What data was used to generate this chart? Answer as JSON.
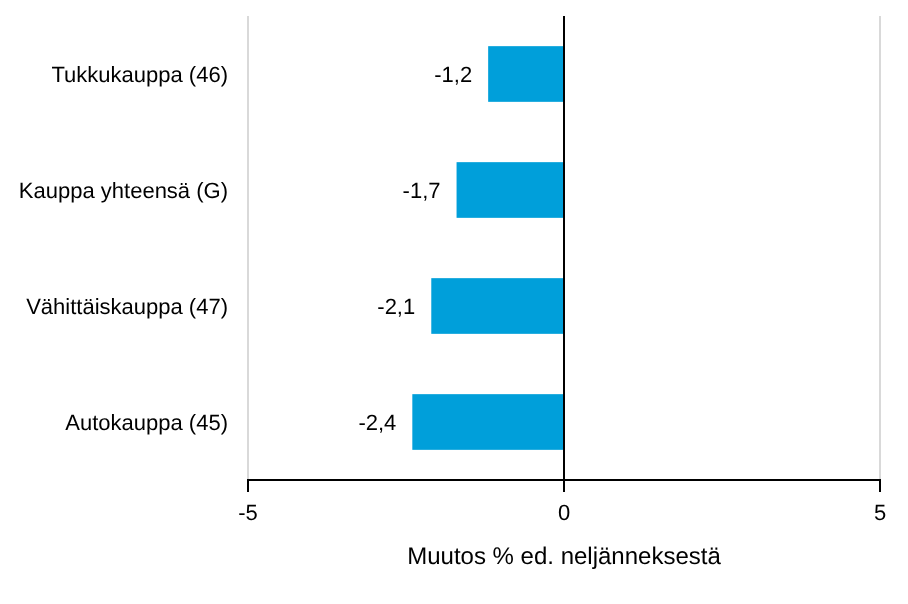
{
  "chart_data": {
    "type": "bar",
    "orientation": "horizontal",
    "categories": [
      "Tukkukauppa (46)",
      "Kauppa yhteensä (G)",
      "Vähittäiskauppa (47)",
      "Autokauppa (45)"
    ],
    "values": [
      -1.2,
      -1.7,
      -2.1,
      -2.4
    ],
    "value_labels": [
      "-1,2",
      "-1,7",
      "-2,1",
      "-2,4"
    ],
    "color": "#009fda",
    "xlim": [
      -5,
      5
    ],
    "xticks": [
      -5,
      0,
      5
    ],
    "grid": "x",
    "xlabel": "Muutos % ed. neljänneksestä"
  }
}
